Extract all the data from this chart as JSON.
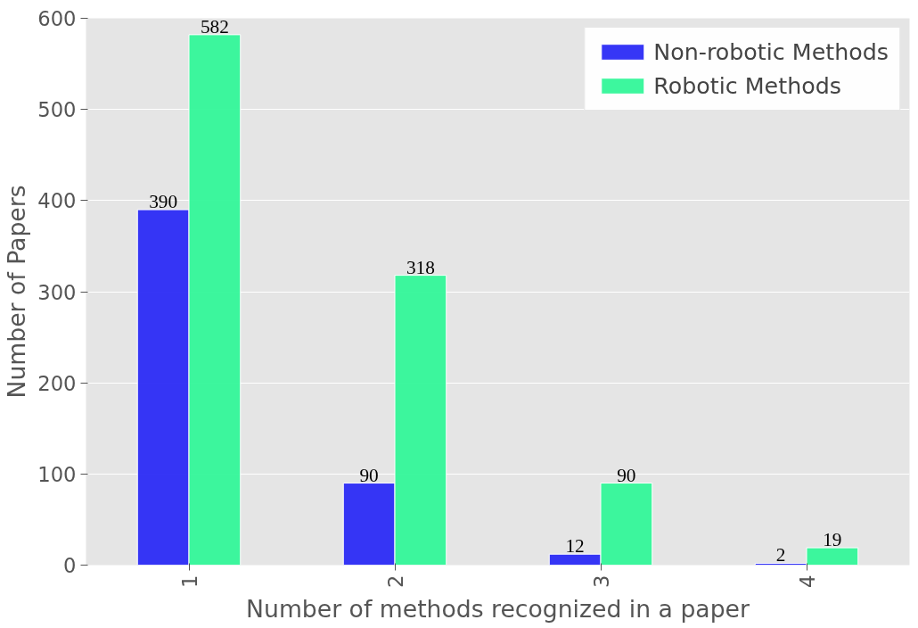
{
  "chart_data": {
    "type": "bar",
    "xlabel": "Number of methods recognized in a paper",
    "ylabel": "Number of Papers",
    "categories": [
      "1",
      "2",
      "3",
      "4"
    ],
    "series": [
      {
        "name": "Non-robotic Methods",
        "color": "#2b2bf5",
        "values": [
          390,
          90,
          12,
          2
        ]
      },
      {
        "name": "Robotic Methods",
        "color": "#33f799",
        "values": [
          582,
          318,
          90,
          19
        ]
      }
    ],
    "ylim": [
      0,
      600
    ],
    "yticks": [
      0,
      100,
      200,
      300,
      400,
      500,
      600
    ],
    "grid": "y",
    "legend": "top right",
    "data_labels": true
  }
}
